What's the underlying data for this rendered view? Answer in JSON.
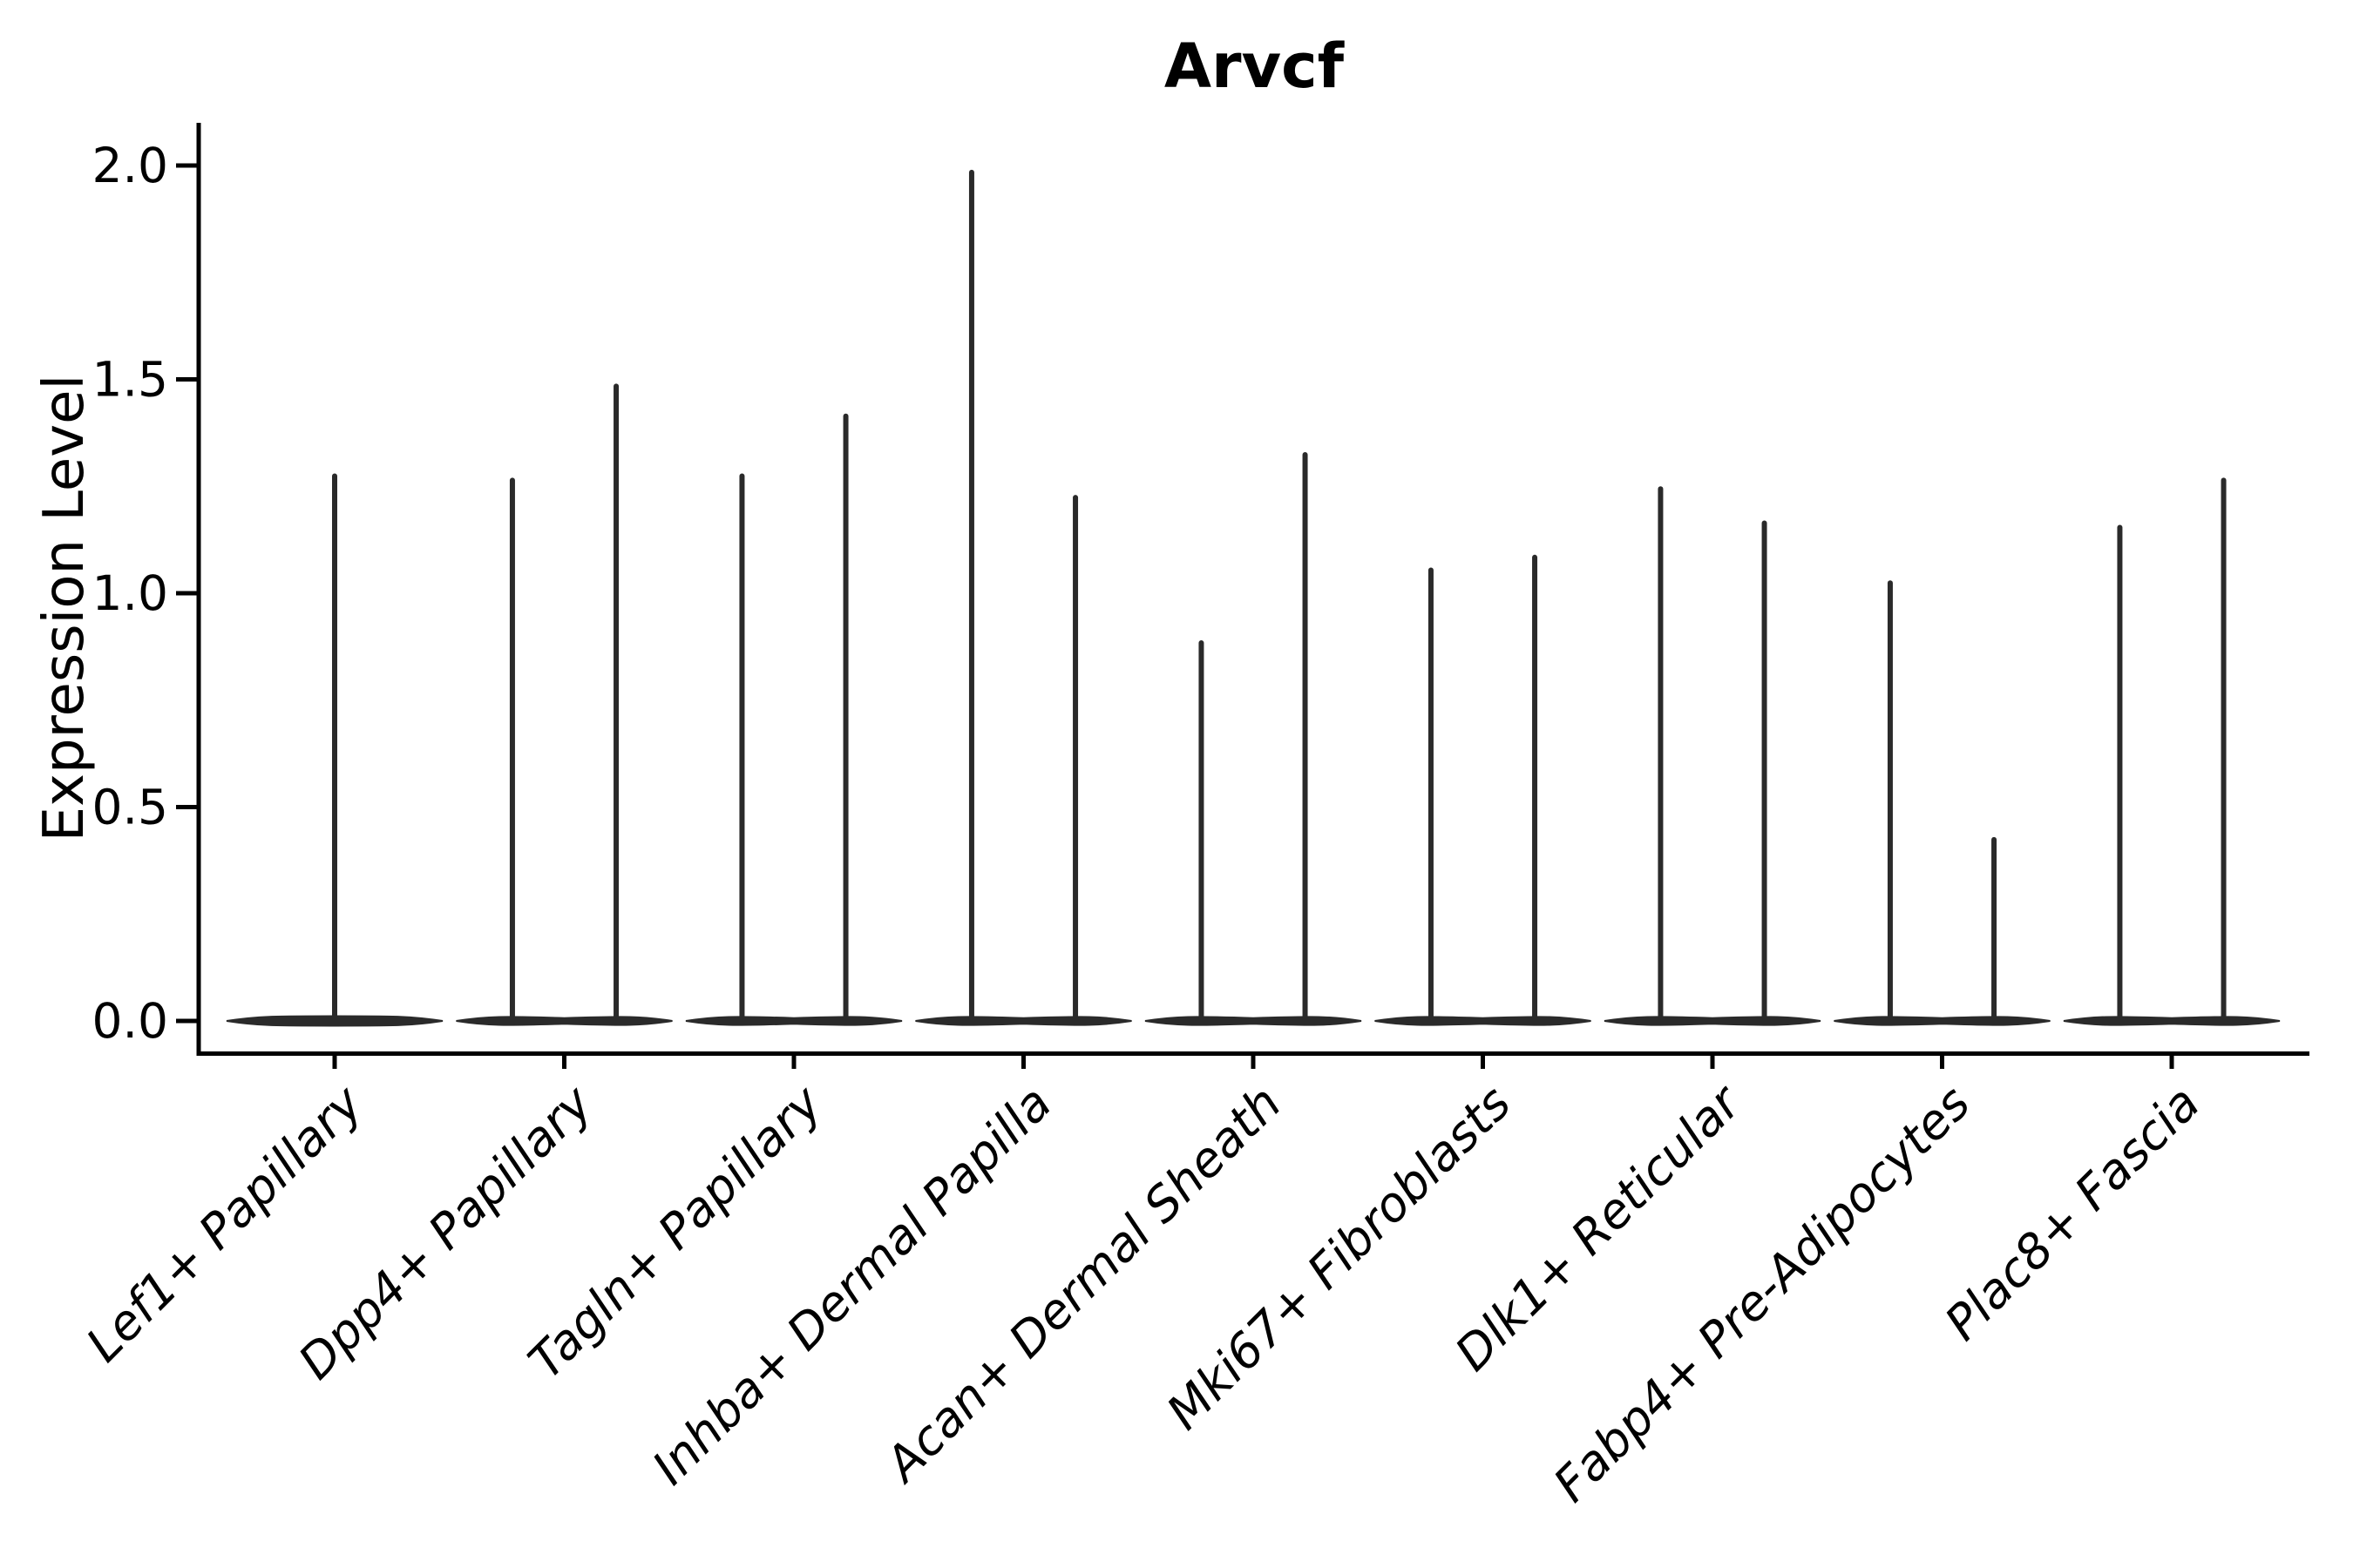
{
  "title": "Arvcf",
  "ylabel": "Expression Level",
  "chart_data": {
    "type": "violin",
    "title": "Arvcf",
    "xlabel": "",
    "ylabel": "Expression Level",
    "ylim": [
      -0.08,
      2.1
    ],
    "yticks": [
      0.0,
      0.5,
      1.0,
      1.5,
      2.0
    ],
    "ytick_labels": [
      "0.0",
      "0.5",
      "1.0",
      "1.5",
      "2.0"
    ],
    "grid": false,
    "legend": null,
    "x_labels_rotation_deg": 45,
    "categories": [
      "Lef1+ Papillary",
      "Dpp4+ Papillary",
      "Tagln+ Papillary",
      "Inhba+ Dermal Papilla",
      "Acan+ Dermal Sheath",
      "Mki67+ Fibroblasts",
      "Dlk1+ Reticular",
      "Fabp4+ Pre-Adipocytes",
      "Plac8+ Fascia"
    ],
    "groups": [
      {
        "category": "Lef1+ Papillary",
        "base": 0.0,
        "spikes": [
          {
            "offset": 0.0,
            "max": 1.28
          }
        ]
      },
      {
        "category": "Dpp4+ Papillary",
        "base": 0.0,
        "spikes": [
          {
            "offset": -0.226,
            "max": 1.27
          },
          {
            "offset": 0.226,
            "max": 1.49
          }
        ]
      },
      {
        "category": "Tagln+ Papillary",
        "base": 0.0,
        "spikes": [
          {
            "offset": -0.226,
            "max": 1.28
          },
          {
            "offset": 0.226,
            "max": 1.42
          }
        ]
      },
      {
        "category": "Inhba+ Dermal Papilla",
        "base": 0.0,
        "spikes": [
          {
            "offset": -0.226,
            "max": 1.99
          },
          {
            "offset": 0.226,
            "max": 1.23
          }
        ]
      },
      {
        "category": "Acan+ Dermal Sheath",
        "base": 0.0,
        "spikes": [
          {
            "offset": -0.226,
            "max": 0.89
          },
          {
            "offset": 0.226,
            "max": 1.33
          }
        ]
      },
      {
        "category": "Mki67+ Fibroblasts",
        "base": 0.0,
        "spikes": [
          {
            "offset": -0.226,
            "max": 1.06
          },
          {
            "offset": 0.226,
            "max": 1.09
          }
        ]
      },
      {
        "category": "Dlk1+ Reticular",
        "base": 0.0,
        "spikes": [
          {
            "offset": -0.226,
            "max": 1.25
          },
          {
            "offset": 0.226,
            "max": 1.17
          }
        ]
      },
      {
        "category": "Fabp4+ Pre-Adipocytes",
        "base": 0.0,
        "spikes": [
          {
            "offset": -0.226,
            "max": 1.03
          },
          {
            "offset": 0.226,
            "max": 0.43
          }
        ]
      },
      {
        "category": "Plac8+ Fascia",
        "base": 0.0,
        "spikes": [
          {
            "offset": -0.226,
            "max": 1.16
          },
          {
            "offset": 0.226,
            "max": 1.27
          }
        ]
      }
    ],
    "style": {
      "violin_color": "#2a2a2a",
      "axis_color": "#000000",
      "text_color": "#000000",
      "background": "#ffffff"
    }
  }
}
